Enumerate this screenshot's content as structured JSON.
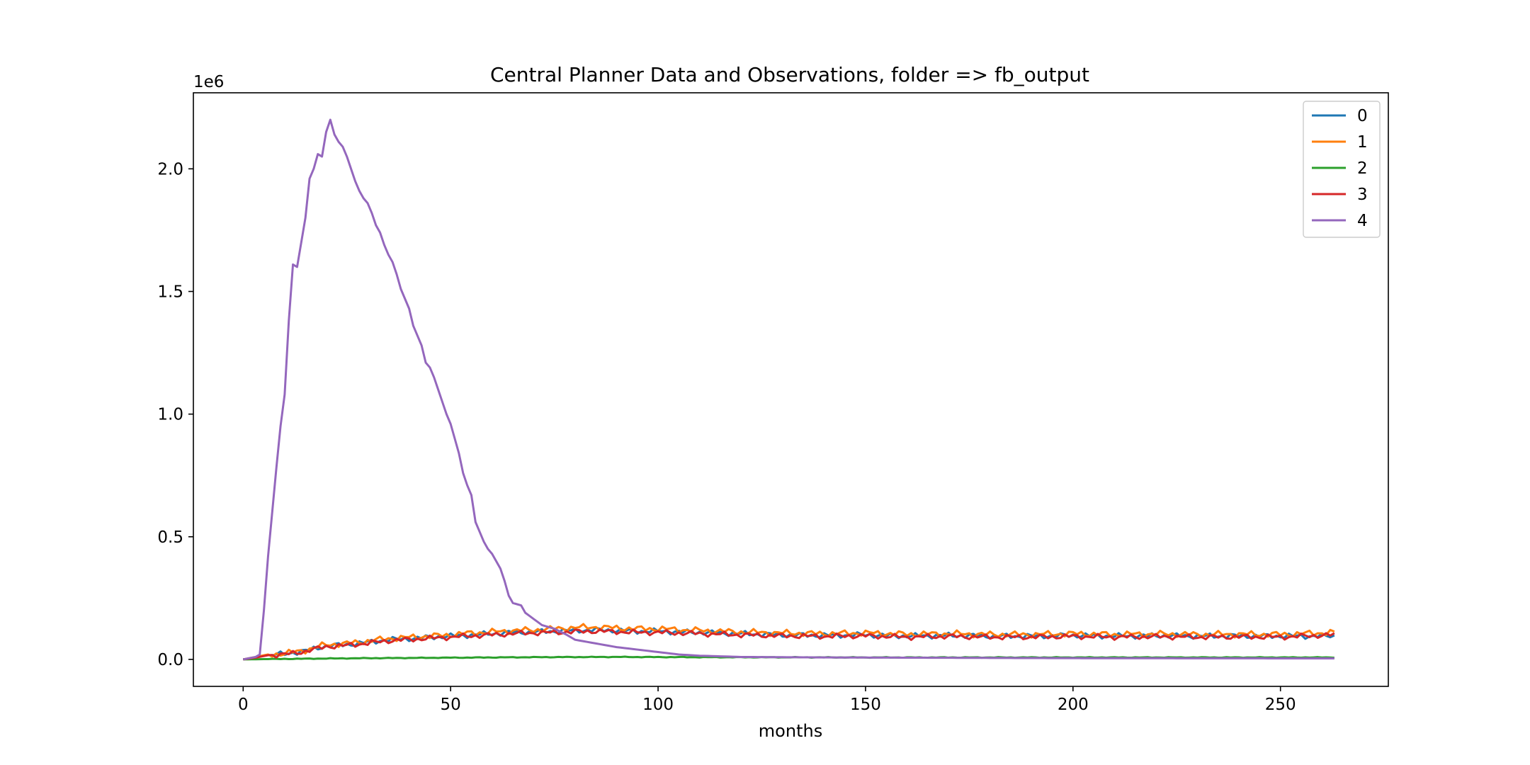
{
  "chart_data": {
    "type": "line",
    "title": "Central Planner Data and Observations, folder => fb_output",
    "xlabel": "months",
    "ylabel": "",
    "y_offset_label": "1e6",
    "xlim": [
      -12,
      276
    ],
    "ylim": [
      -0.11,
      2.31
    ],
    "y_scale_factor": 1000000,
    "x_ticks": [
      0,
      50,
      100,
      150,
      200,
      250
    ],
    "x_tick_labels": [
      "0",
      "50",
      "100",
      "150",
      "200",
      "250"
    ],
    "y_ticks": [
      0.0,
      0.5,
      1.0,
      1.5,
      2.0
    ],
    "y_tick_labels": [
      "0.0",
      "0.5",
      "1.0",
      "1.5",
      "2.0"
    ],
    "grid": false,
    "legend_position": "top-right",
    "x_range": [
      0,
      263
    ],
    "series": [
      {
        "name": "0",
        "color": "#1f77b4",
        "points": [
          [
            0,
            0.0
          ],
          [
            3,
            0.008
          ],
          [
            6,
            0.018
          ],
          [
            10,
            0.022
          ],
          [
            15,
            0.035
          ],
          [
            20,
            0.055
          ],
          [
            25,
            0.06
          ],
          [
            30,
            0.07
          ],
          [
            35,
            0.08
          ],
          [
            40,
            0.085
          ],
          [
            45,
            0.09
          ],
          [
            50,
            0.095
          ],
          [
            55,
            0.1
          ],
          [
            60,
            0.105
          ],
          [
            65,
            0.11
          ],
          [
            70,
            0.112
          ],
          [
            75,
            0.115
          ],
          [
            80,
            0.118
          ],
          [
            85,
            0.12
          ],
          [
            90,
            0.118
          ],
          [
            95,
            0.115
          ],
          [
            100,
            0.115
          ],
          [
            110,
            0.11
          ],
          [
            120,
            0.105
          ],
          [
            130,
            0.1
          ],
          [
            140,
            0.098
          ],
          [
            150,
            0.1
          ],
          [
            160,
            0.095
          ],
          [
            170,
            0.098
          ],
          [
            180,
            0.095
          ],
          [
            190,
            0.095
          ],
          [
            200,
            0.098
          ],
          [
            210,
            0.095
          ],
          [
            220,
            0.097
          ],
          [
            230,
            0.095
          ],
          [
            240,
            0.096
          ],
          [
            250,
            0.095
          ],
          [
            263,
            0.095
          ]
        ],
        "jitter": 0.012
      },
      {
        "name": "1",
        "color": "#ff7f0e",
        "points": [
          [
            0,
            0.0
          ],
          [
            3,
            0.01
          ],
          [
            6,
            0.02
          ],
          [
            10,
            0.024
          ],
          [
            15,
            0.038
          ],
          [
            20,
            0.06
          ],
          [
            25,
            0.065
          ],
          [
            30,
            0.075
          ],
          [
            35,
            0.085
          ],
          [
            40,
            0.09
          ],
          [
            45,
            0.095
          ],
          [
            50,
            0.1
          ],
          [
            55,
            0.108
          ],
          [
            60,
            0.112
          ],
          [
            65,
            0.118
          ],
          [
            70,
            0.12
          ],
          [
            75,
            0.125
          ],
          [
            80,
            0.13
          ],
          [
            85,
            0.132
          ],
          [
            90,
            0.128
          ],
          [
            95,
            0.125
          ],
          [
            100,
            0.125
          ],
          [
            110,
            0.118
          ],
          [
            120,
            0.112
          ],
          [
            130,
            0.108
          ],
          [
            140,
            0.105
          ],
          [
            150,
            0.108
          ],
          [
            160,
            0.103
          ],
          [
            170,
            0.105
          ],
          [
            180,
            0.102
          ],
          [
            190,
            0.102
          ],
          [
            200,
            0.105
          ],
          [
            210,
            0.102
          ],
          [
            220,
            0.104
          ],
          [
            230,
            0.102
          ],
          [
            240,
            0.103
          ],
          [
            250,
            0.102
          ],
          [
            263,
            0.11
          ]
        ],
        "jitter": 0.014
      },
      {
        "name": "2",
        "color": "#2ca02c",
        "points": [
          [
            0,
            0.0
          ],
          [
            10,
            0.002
          ],
          [
            30,
            0.005
          ],
          [
            50,
            0.007
          ],
          [
            70,
            0.009
          ],
          [
            90,
            0.01
          ],
          [
            110,
            0.009
          ],
          [
            150,
            0.008
          ],
          [
            200,
            0.008
          ],
          [
            263,
            0.008
          ]
        ],
        "jitter": 0.0015
      },
      {
        "name": "3",
        "color": "#d62728",
        "points": [
          [
            0,
            0.0
          ],
          [
            3,
            0.007
          ],
          [
            6,
            0.017
          ],
          [
            10,
            0.02
          ],
          [
            15,
            0.033
          ],
          [
            20,
            0.052
          ],
          [
            25,
            0.057
          ],
          [
            30,
            0.066
          ],
          [
            35,
            0.076
          ],
          [
            40,
            0.081
          ],
          [
            45,
            0.086
          ],
          [
            50,
            0.091
          ],
          [
            55,
            0.096
          ],
          [
            60,
            0.1
          ],
          [
            65,
            0.105
          ],
          [
            70,
            0.108
          ],
          [
            75,
            0.11
          ],
          [
            80,
            0.113
          ],
          [
            85,
            0.115
          ],
          [
            90,
            0.113
          ],
          [
            95,
            0.11
          ],
          [
            100,
            0.11
          ],
          [
            110,
            0.105
          ],
          [
            120,
            0.1
          ],
          [
            130,
            0.096
          ],
          [
            140,
            0.094
          ],
          [
            150,
            0.096
          ],
          [
            160,
            0.091
          ],
          [
            170,
            0.094
          ],
          [
            180,
            0.091
          ],
          [
            190,
            0.091
          ],
          [
            200,
            0.094
          ],
          [
            210,
            0.091
          ],
          [
            220,
            0.093
          ],
          [
            230,
            0.091
          ],
          [
            240,
            0.092
          ],
          [
            250,
            0.091
          ],
          [
            263,
            0.1
          ]
        ],
        "jitter": 0.012
      },
      {
        "name": "4",
        "color": "#9467bd",
        "points": [
          [
            0,
            0.0
          ],
          [
            3,
            0.01
          ],
          [
            4,
            0.02
          ],
          [
            5,
            0.2
          ],
          [
            6,
            0.42
          ],
          [
            7,
            0.6
          ],
          [
            8,
            0.78
          ],
          [
            9,
            0.95
          ],
          [
            10,
            1.08
          ],
          [
            11,
            1.38
          ],
          [
            12,
            1.61
          ],
          [
            13,
            1.6
          ],
          [
            14,
            1.7
          ],
          [
            15,
            1.8
          ],
          [
            16,
            1.96
          ],
          [
            17,
            2.0
          ],
          [
            18,
            2.06
          ],
          [
            19,
            2.05
          ],
          [
            20,
            2.15
          ],
          [
            21,
            2.2
          ],
          [
            22,
            2.14
          ],
          [
            23,
            2.11
          ],
          [
            24,
            2.09
          ],
          [
            25,
            2.05
          ],
          [
            26,
            2.0
          ],
          [
            27,
            1.95
          ],
          [
            28,
            1.91
          ],
          [
            29,
            1.88
          ],
          [
            30,
            1.86
          ],
          [
            31,
            1.82
          ],
          [
            32,
            1.77
          ],
          [
            33,
            1.74
          ],
          [
            34,
            1.69
          ],
          [
            35,
            1.65
          ],
          [
            36,
            1.62
          ],
          [
            37,
            1.57
          ],
          [
            38,
            1.51
          ],
          [
            39,
            1.47
          ],
          [
            40,
            1.43
          ],
          [
            41,
            1.36
          ],
          [
            42,
            1.32
          ],
          [
            43,
            1.28
          ],
          [
            44,
            1.21
          ],
          [
            45,
            1.19
          ],
          [
            46,
            1.15
          ],
          [
            47,
            1.1
          ],
          [
            48,
            1.05
          ],
          [
            49,
            1.0
          ],
          [
            50,
            0.96
          ],
          [
            51,
            0.9
          ],
          [
            52,
            0.84
          ],
          [
            53,
            0.76
          ],
          [
            54,
            0.71
          ],
          [
            55,
            0.67
          ],
          [
            56,
            0.56
          ],
          [
            57,
            0.52
          ],
          [
            58,
            0.48
          ],
          [
            59,
            0.45
          ],
          [
            60,
            0.43
          ],
          [
            61,
            0.4
          ],
          [
            62,
            0.37
          ],
          [
            63,
            0.32
          ],
          [
            64,
            0.26
          ],
          [
            65,
            0.23
          ],
          [
            67,
            0.22
          ],
          [
            68,
            0.19
          ],
          [
            70,
            0.165
          ],
          [
            72,
            0.14
          ],
          [
            75,
            0.125
          ],
          [
            78,
            0.1
          ],
          [
            80,
            0.08
          ],
          [
            85,
            0.065
          ],
          [
            90,
            0.05
          ],
          [
            95,
            0.04
          ],
          [
            100,
            0.03
          ],
          [
            105,
            0.02
          ],
          [
            110,
            0.015
          ],
          [
            120,
            0.01
          ],
          [
            140,
            0.008
          ],
          [
            160,
            0.007
          ],
          [
            200,
            0.005
          ],
          [
            263,
            0.004
          ]
        ],
        "jitter": 0.0
      }
    ]
  }
}
